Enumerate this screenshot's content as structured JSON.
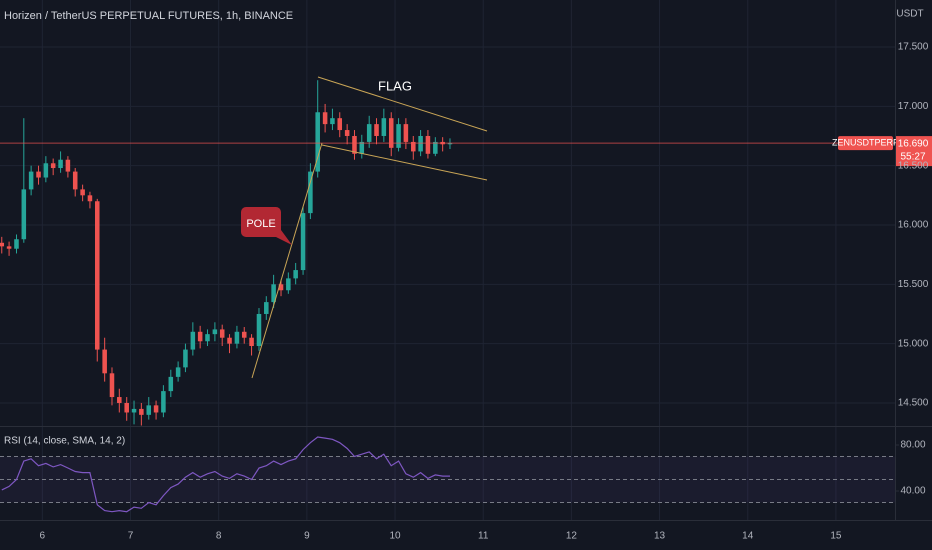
{
  "chart_data": [
    {
      "type": "candlestick",
      "title": "Horizen / TetherUS PERPETUAL FUTURES, 1h, BINANCE",
      "y_unit": "USDT",
      "symbol": "ZENUSDTPERP",
      "countdown": "55:27",
      "last_price": {
        "value": 16.69,
        "label": "16.690"
      },
      "annotations": [
        "FLAG",
        "POLE"
      ],
      "colors": {
        "up": "#26a69a",
        "down": "#ef5350"
      },
      "grid": true,
      "xlim": [
        5.52,
        15.67
      ],
      "xticks": [
        6,
        7,
        8,
        9,
        10,
        11,
        12,
        13,
        14,
        15
      ],
      "ylim": [
        14.306,
        17.896
      ],
      "yticks": [
        {
          "value": 14.5,
          "label": "14.500"
        },
        {
          "value": 15,
          "label": "15.000"
        },
        {
          "value": 15.5,
          "label": "15.500"
        },
        {
          "value": 16,
          "label": "16.000"
        },
        {
          "value": 16.5,
          "label": "16.500"
        },
        {
          "value": 17,
          "label": "17.000"
        },
        {
          "value": 17.5,
          "label": "17.500"
        }
      ],
      "x": [
        5.54,
        5.623,
        5.707,
        5.79,
        5.873,
        5.957,
        6.04,
        6.123,
        6.207,
        6.29,
        6.373,
        6.457,
        6.54,
        6.623,
        6.707,
        6.79,
        6.873,
        6.957,
        7.04,
        7.123,
        7.207,
        7.29,
        7.373,
        7.457,
        7.54,
        7.623,
        7.707,
        7.79,
        7.873,
        7.957,
        8.04,
        8.123,
        8.207,
        8.29,
        8.373,
        8.457,
        8.54,
        8.623,
        8.707,
        8.79,
        8.873,
        8.957,
        9.04,
        9.123,
        9.207,
        9.29,
        9.373,
        9.457,
        9.54,
        9.623,
        9.707,
        9.79,
        9.873,
        9.957,
        10.04,
        10.123,
        10.207,
        10.29,
        10.373,
        10.457,
        10.54,
        10.623
      ],
      "open": [
        15.85,
        15.82,
        15.8,
        15.88,
        16.3,
        16.45,
        16.4,
        16.52,
        16.48,
        16.55,
        16.45,
        16.3,
        16.25,
        16.2,
        14.95,
        14.75,
        14.55,
        14.5,
        14.42,
        14.45,
        14.4,
        14.48,
        14.42,
        14.6,
        14.72,
        14.8,
        14.95,
        15.1,
        15.02,
        15.08,
        15.12,
        15.05,
        15.0,
        15.1,
        15.05,
        14.98,
        15.25,
        15.35,
        15.5,
        15.45,
        15.55,
        15.62,
        16.1,
        16.45,
        16.95,
        16.85,
        16.9,
        16.8,
        16.75,
        16.6,
        16.7,
        16.85,
        16.75,
        16.9,
        16.65,
        16.85,
        16.7,
        16.62,
        16.75,
        16.6,
        16.7,
        16.68
      ],
      "high": [
        15.9,
        15.86,
        15.92,
        16.9,
        16.5,
        16.5,
        16.58,
        16.56,
        16.62,
        16.58,
        16.48,
        16.34,
        16.28,
        16.22,
        15.05,
        14.8,
        14.62,
        14.55,
        14.52,
        14.5,
        14.55,
        14.52,
        14.65,
        14.78,
        14.85,
        15.0,
        15.18,
        15.15,
        15.12,
        15.18,
        15.16,
        15.08,
        15.15,
        15.14,
        15.08,
        15.3,
        15.4,
        15.58,
        15.54,
        15.6,
        15.68,
        16.15,
        16.52,
        17.22,
        17.02,
        16.98,
        16.95,
        16.85,
        16.8,
        16.76,
        16.92,
        16.9,
        16.98,
        16.95,
        16.9,
        16.9,
        16.75,
        16.8,
        16.8,
        16.74,
        16.74,
        16.73
      ],
      "low": [
        15.76,
        15.74,
        15.76,
        15.85,
        16.25,
        16.34,
        16.36,
        16.42,
        16.44,
        16.4,
        16.24,
        16.2,
        16.14,
        14.85,
        14.68,
        14.48,
        14.42,
        14.35,
        14.32,
        14.31,
        14.36,
        14.36,
        14.38,
        14.55,
        14.68,
        14.76,
        14.9,
        14.96,
        14.98,
        15.02,
        14.98,
        14.92,
        14.96,
        15.0,
        14.9,
        14.94,
        15.2,
        15.3,
        15.4,
        15.42,
        15.5,
        15.58,
        16.05,
        16.4,
        16.78,
        16.8,
        16.74,
        16.68,
        16.55,
        16.56,
        16.65,
        16.68,
        16.7,
        16.58,
        16.62,
        16.64,
        16.55,
        16.58,
        16.56,
        16.58,
        16.62,
        16.64
      ],
      "close": [
        15.82,
        15.8,
        15.88,
        16.3,
        16.45,
        16.4,
        16.52,
        16.48,
        16.55,
        16.45,
        16.3,
        16.25,
        16.2,
        14.95,
        14.75,
        14.55,
        14.5,
        14.42,
        14.45,
        14.4,
        14.48,
        14.42,
        14.6,
        14.72,
        14.8,
        14.95,
        15.1,
        15.02,
        15.08,
        15.12,
        15.05,
        15.0,
        15.1,
        15.05,
        14.98,
        15.25,
        15.35,
        15.5,
        15.45,
        15.55,
        15.62,
        16.1,
        16.45,
        16.95,
        16.85,
        16.9,
        16.8,
        16.75,
        16.6,
        16.7,
        16.85,
        16.75,
        16.9,
        16.65,
        16.85,
        16.7,
        16.62,
        16.75,
        16.6,
        16.7,
        16.68,
        16.69
      ]
    },
    {
      "type": "line",
      "title": "RSI (14, close, SMA, 14, 2)",
      "color": "#7e57c2",
      "band": [
        30,
        70
      ],
      "midline": 50,
      "ylim": [
        14.8,
        94.8
      ],
      "yticks": [
        {
          "value": 80,
          "label": "80.00"
        },
        {
          "value": 40,
          "label": "40.00"
        }
      ],
      "x": [
        5.54,
        5.623,
        5.707,
        5.79,
        5.873,
        5.957,
        6.04,
        6.123,
        6.207,
        6.29,
        6.373,
        6.457,
        6.54,
        6.623,
        6.707,
        6.79,
        6.873,
        6.957,
        7.04,
        7.123,
        7.207,
        7.29,
        7.373,
        7.457,
        7.54,
        7.623,
        7.707,
        7.79,
        7.873,
        7.957,
        8.04,
        8.123,
        8.207,
        8.29,
        8.373,
        8.457,
        8.54,
        8.623,
        8.707,
        8.79,
        8.873,
        8.957,
        9.04,
        9.123,
        9.207,
        9.29,
        9.373,
        9.457,
        9.54,
        9.623,
        9.707,
        9.79,
        9.873,
        9.957,
        10.04,
        10.123,
        10.207,
        10.29,
        10.373,
        10.457,
        10.54,
        10.623
      ],
      "values": [
        41,
        44,
        50,
        66,
        68,
        62,
        64,
        61,
        63,
        60,
        57,
        56,
        56,
        28,
        23,
        22,
        23,
        22,
        26,
        25,
        30,
        28,
        36,
        43,
        46,
        52,
        56,
        52,
        55,
        57,
        53,
        51,
        55,
        53,
        50,
        60,
        62,
        66,
        63,
        66,
        68,
        76,
        82,
        87,
        86,
        85,
        82,
        77,
        70,
        72,
        74,
        68,
        72,
        62,
        66,
        55,
        52,
        56,
        51,
        54,
        53,
        53
      ]
    }
  ]
}
